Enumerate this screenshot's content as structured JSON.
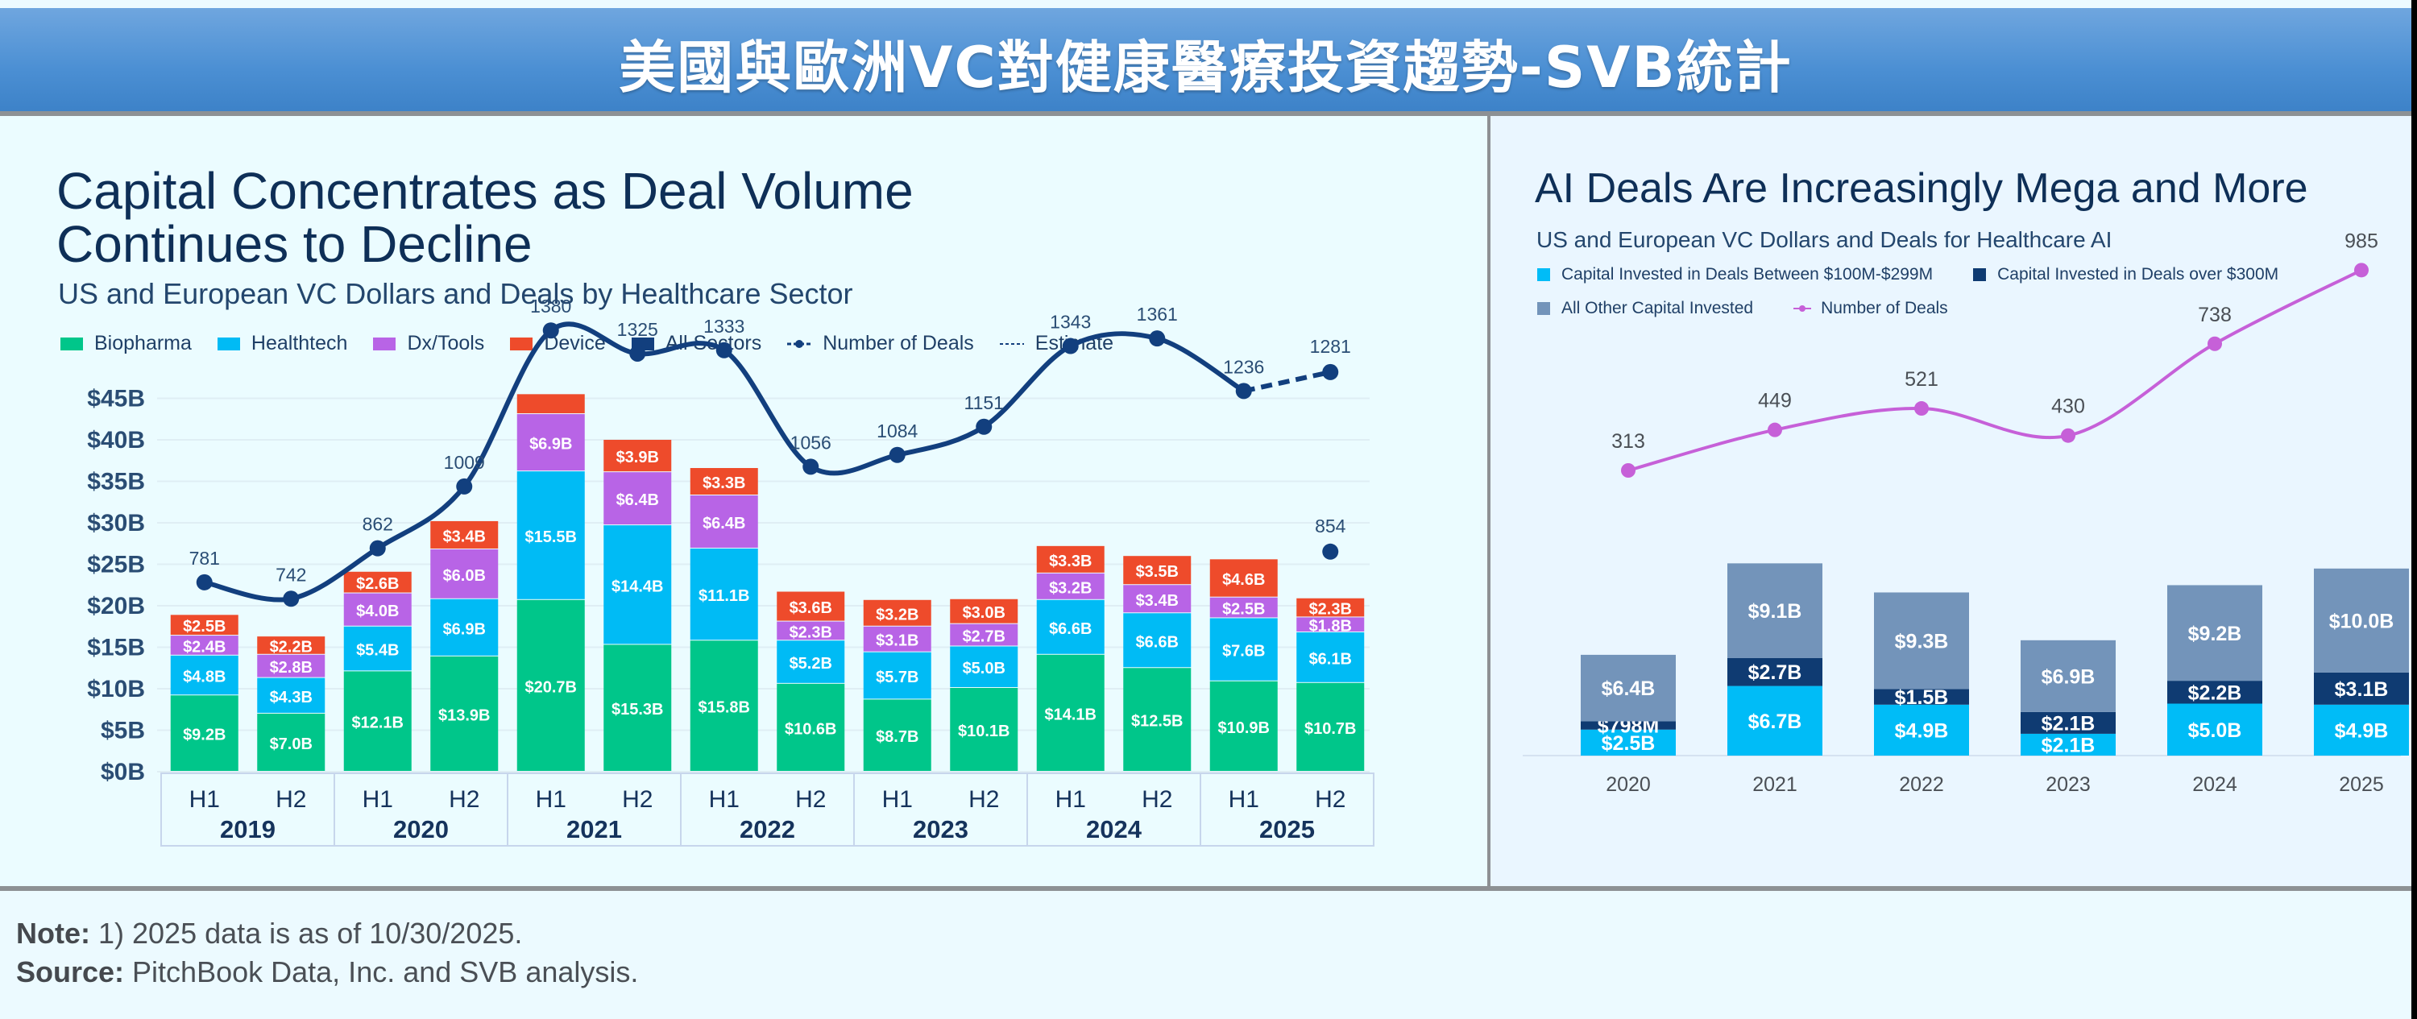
{
  "header": {
    "title": "美國與歐洲VC對健康醫療投資趨勢-SVB統計"
  },
  "left_chart": {
    "title_line1": "Capital Concentrates as Deal Volume",
    "title_line2": "Continues to Decline",
    "subtitle": "US and European VC Dollars and Deals by Healthcare Sector",
    "legend": [
      {
        "label": "Biopharma",
        "color": "#00c68a"
      },
      {
        "label": "Healthtech",
        "color": "#00bbf5"
      },
      {
        "label": "Dx/Tools",
        "color": "#b864e6"
      },
      {
        "label": "Device",
        "color": "#ee4b2b"
      },
      {
        "label": "All Sectors",
        "color": "#123f7e"
      },
      {
        "label": "Number of Deals",
        "color": "#123f7e"
      },
      {
        "label": "Estimate",
        "color": "#123f7e"
      }
    ]
  },
  "right_chart": {
    "title": "AI Deals Are Increasingly Mega and More",
    "subtitle": "US and European VC Dollars and Deals for Healthcare AI",
    "legend": [
      {
        "label": "Capital Invested in Deals Between $100M-$299M",
        "color": "#00bcf7"
      },
      {
        "label": "Capital Invested in Deals over $300M",
        "color": "#0f3b72"
      },
      {
        "label": "All Other Capital Invested",
        "color": "#7394ba"
      },
      {
        "label": "Number of Deals",
        "color": "#c660d8"
      }
    ]
  },
  "footer": {
    "note_label": "Note:",
    "note_text": " 1) 2025 data is as of 10/30/2025.",
    "source_label": "Source:",
    "source_text": " PitchBook Data, Inc. and SVB analysis."
  },
  "chart_data": [
    {
      "type": "bar",
      "stacked": true,
      "title": "Capital Concentrates as Deal Volume Continues to Decline",
      "subtitle": "US and European VC Dollars and Deals by Healthcare Sector",
      "xlabel": "",
      "ylabel": "",
      "ylim": [
        0,
        45
      ],
      "yticks": [
        "$0B",
        "$5B",
        "$10B",
        "$15B",
        "$20B",
        "$25B",
        "$30B",
        "$35B",
        "$40B",
        "$45B"
      ],
      "grid": true,
      "legend_position": "top",
      "years": [
        "2019",
        "2020",
        "2021",
        "2022",
        "2023",
        "2024",
        "2025"
      ],
      "categories": [
        "2019 H1",
        "2019 H2",
        "2020 H1",
        "2020 H2",
        "2021 H1",
        "2021 H2",
        "2022 H1",
        "2022 H2",
        "2023 H1",
        "2023 H2",
        "2024 H1",
        "2024 H2",
        "2025 H1",
        "2025 H2"
      ],
      "category_labels": [
        "H1",
        "H2",
        "H1",
        "H2",
        "H1",
        "H2",
        "H1",
        "H2",
        "H1",
        "H2",
        "H1",
        "H2",
        "H1",
        "H2"
      ],
      "series": [
        {
          "name": "Biopharma",
          "color": "#00c68a",
          "values": [
            9.2,
            7.0,
            12.1,
            13.9,
            20.7,
            15.3,
            15.8,
            10.6,
            8.7,
            10.1,
            14.1,
            12.5,
            10.9,
            10.7
          ],
          "labels": [
            "$9.2B",
            "$7.0B",
            "$12.1B",
            "$13.9B",
            "$20.7B",
            "$15.3B",
            "$15.8B",
            "$10.6B",
            "$8.7B",
            "$10.1B",
            "$14.1B",
            "$12.5B",
            "$10.9B",
            "$10.7B"
          ]
        },
        {
          "name": "Healthtech",
          "color": "#00bbf5",
          "values": [
            4.8,
            4.3,
            5.4,
            6.9,
            15.5,
            14.4,
            11.1,
            5.2,
            5.7,
            5.0,
            6.6,
            6.6,
            7.6,
            6.1
          ],
          "labels": [
            "$4.8B",
            "$4.3B",
            "$5.4B",
            "$6.9B",
            "$15.5B",
            "$14.4B",
            "$11.1B",
            "$5.2B",
            "$5.7B",
            "$5.0B",
            "$6.6B",
            "$6.6B",
            "$7.6B",
            "$6.1B"
          ]
        },
        {
          "name": "Dx/Tools",
          "color": "#b864e6",
          "values": [
            2.4,
            2.8,
            4.0,
            6.0,
            6.9,
            6.4,
            6.4,
            2.3,
            3.1,
            2.7,
            3.2,
            3.4,
            2.5,
            1.8
          ],
          "labels": [
            "$2.4B",
            "$2.8B",
            "$4.0B",
            "$6.0B",
            "$6.9B",
            "$6.4B",
            "$6.4B",
            "$2.3B",
            "$3.1B",
            "$2.7B",
            "$3.2B",
            "$3.4B",
            "$2.5B",
            "$1.8B"
          ]
        },
        {
          "name": "Device",
          "color": "#ee4b2b",
          "values": [
            2.5,
            2.2,
            2.6,
            3.4,
            2.4,
            3.9,
            3.3,
            3.6,
            3.2,
            3.0,
            3.3,
            3.5,
            4.6,
            2.3
          ],
          "labels": [
            "$2.5B",
            "$2.2B",
            "$2.6B",
            "$3.4B",
            "",
            "$3.9B",
            "$3.3B",
            "$3.6B",
            "$3.2B",
            "$3.0B",
            "$3.3B",
            "$3.5B",
            "$4.6B",
            "$2.3B"
          ]
        }
      ],
      "deals_line": {
        "name": "Number of Deals",
        "color": "#123f7e",
        "values": [
          781,
          742,
          862,
          1009,
          1380,
          1325,
          1333,
          1056,
          1084,
          1151,
          1343,
          1361,
          1236,
          854
        ],
        "estimate": {
          "from": "2025 H1",
          "to": "2025 H2",
          "value": 1281,
          "style": "dashed"
        }
      }
    },
    {
      "type": "bar",
      "stacked": true,
      "title": "AI Deals Are Increasingly Mega and More",
      "subtitle": "US and European VC Dollars and Deals for Healthcare AI",
      "xlabel": "",
      "ylabel": "",
      "grid": false,
      "legend_position": "top",
      "categories": [
        "2020",
        "2021",
        "2022",
        "2023",
        "2024",
        "2025"
      ],
      "series": [
        {
          "name": "Capital Invested in Deals Between $100M-$299M",
          "color": "#00bcf7",
          "values": [
            2.5,
            6.7,
            4.9,
            2.1,
            5.0,
            4.9
          ],
          "labels": [
            "$2.5B",
            "$6.7B",
            "$4.9B",
            "$2.1B",
            "$5.0B",
            "$4.9B"
          ]
        },
        {
          "name": "Capital Invested in Deals over $300M",
          "color": "#0f3b72",
          "values": [
            0.798,
            2.7,
            1.5,
            2.1,
            2.2,
            3.1
          ],
          "labels": [
            "$798M",
            "$2.7B",
            "$1.5B",
            "$2.1B",
            "$2.2B",
            "$3.1B"
          ]
        },
        {
          "name": "All Other Capital Invested",
          "color": "#7394ba",
          "values": [
            6.4,
            9.1,
            9.3,
            6.9,
            9.2,
            10.0
          ],
          "labels": [
            "$6.4B",
            "$9.1B",
            "$9.3B",
            "$6.9B",
            "$9.2B",
            "$10.0B"
          ]
        }
      ],
      "deals_line": {
        "name": "Number of Deals",
        "color": "#c660d8",
        "values": [
          313,
          449,
          521,
          430,
          738,
          985
        ]
      }
    }
  ]
}
